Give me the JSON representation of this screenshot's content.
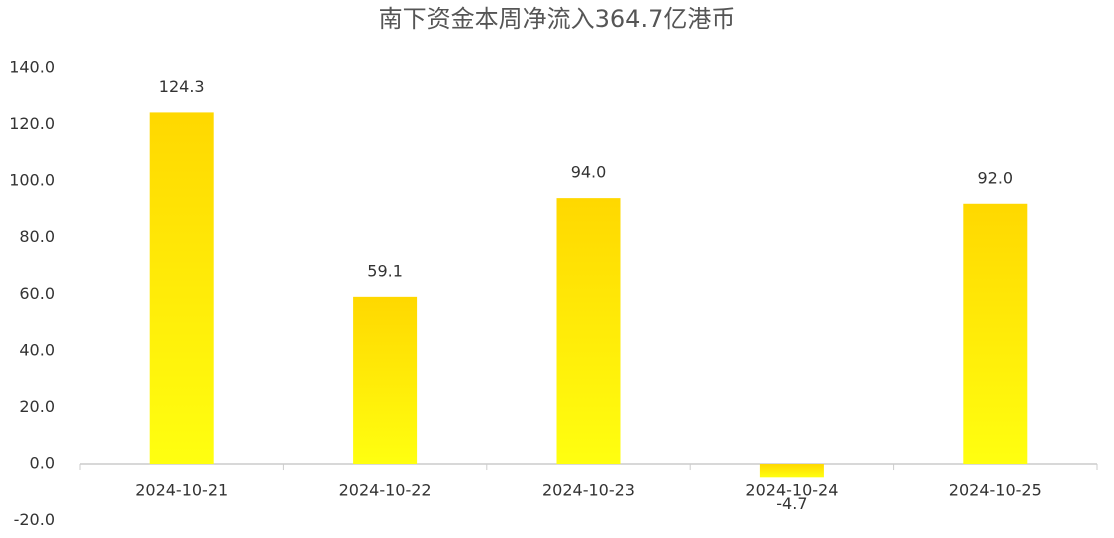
{
  "chart_data": {
    "type": "bar",
    "title": "南下资金本周净流入364.7亿港币",
    "categories": [
      "2024-10-21",
      "2024-10-22",
      "2024-10-23",
      "2024-10-24",
      "2024-10-25"
    ],
    "values": [
      124.3,
      59.1,
      94.0,
      -4.7,
      92.0
    ],
    "value_labels": [
      "124.3",
      "59.1",
      "94.0",
      "-4.7",
      "92.0"
    ],
    "colors": [
      "#ffd800",
      "#ffff10"
    ],
    "ylim": [
      -20,
      140
    ],
    "yticks": [
      {
        "value": -20,
        "label": "-20.0"
      },
      {
        "value": 0,
        "label": "0.0"
      },
      {
        "value": 20,
        "label": "20.0"
      },
      {
        "value": 40,
        "label": "40.0"
      },
      {
        "value": 60,
        "label": "60.0"
      },
      {
        "value": 80,
        "label": "80.0"
      },
      {
        "value": 100,
        "label": "100.0"
      },
      {
        "value": 120,
        "label": "120.0"
      },
      {
        "value": 140,
        "label": "140.0"
      }
    ],
    "grid": false
  }
}
